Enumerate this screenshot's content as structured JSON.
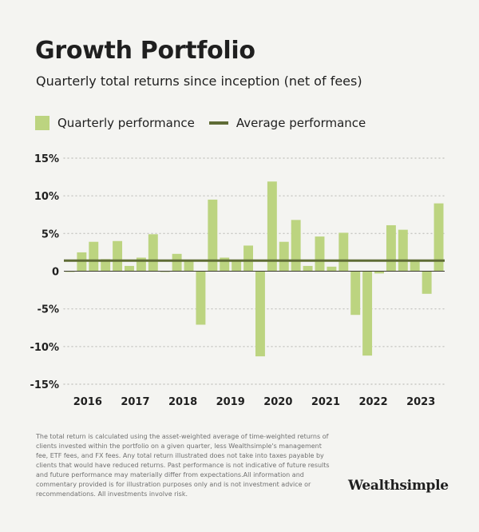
{
  "title": "Growth Portfolio",
  "subtitle": "Quarterly total returns since inception (net of fees)",
  "legend": {
    "bar_label": "Quarterly performance",
    "line_label": "Average performance"
  },
  "colors": {
    "bar": "#bcd480",
    "average_line": "#5f6c36",
    "background": "#f4f4f1",
    "grid": "#c8c8c4"
  },
  "chart_data": {
    "type": "bar",
    "title": "Growth Portfolio",
    "subtitle": "Quarterly total returns since inception (net of fees)",
    "xlabel": "",
    "ylabel": "",
    "ylim": [
      -15,
      15
    ],
    "yticks": [
      15,
      10,
      5,
      0,
      -5,
      -10,
      -15
    ],
    "ytick_labels": [
      "15%",
      "10%",
      "5%",
      "0",
      "-5%",
      "-10%",
      "-15%"
    ],
    "grid": true,
    "legend_position": "top-left",
    "x_tick_labels": [
      {
        "label": "2016",
        "after_bar": 2
      },
      {
        "label": "2017",
        "after_bar": 6
      },
      {
        "label": "2018",
        "after_bar": 10
      },
      {
        "label": "2019",
        "after_bar": 14
      },
      {
        "label": "2020",
        "after_bar": 18
      },
      {
        "label": "2021",
        "after_bar": 22
      },
      {
        "label": "2022",
        "after_bar": 26
      },
      {
        "label": "2023",
        "after_bar": 30
      }
    ],
    "series": [
      {
        "name": "Quarterly performance",
        "values": [
          -0.1,
          2.5,
          3.9,
          1.6,
          4.0,
          0.7,
          1.8,
          4.9,
          -0.1,
          2.3,
          1.4,
          -7.1,
          9.5,
          1.8,
          1.4,
          3.4,
          -11.3,
          11.9,
          3.9,
          6.8,
          0.7,
          4.6,
          0.6,
          5.1,
          -5.8,
          -11.2,
          -0.3,
          6.1,
          5.5,
          1.5,
          -3.0,
          9.0
        ]
      }
    ],
    "average": {
      "name": "Average performance",
      "value": 1.4
    }
  },
  "footnote": "The total return is calculated using the asset-weighted average of time-weighted returns of clients invested within the portfolio on a given quarter, less Wealthsimple's management fee, ETF fees, and FX fees. Any total return illustrated does not take into taxes payable by clients that would have reduced returns. Past performance is not indicative of future results and future performance may materially differ from expectations.All information and commentary provided is for illustration purposes only and is not investment advice or recommendations. All investments involve risk.",
  "brand": "Wealthsimple"
}
